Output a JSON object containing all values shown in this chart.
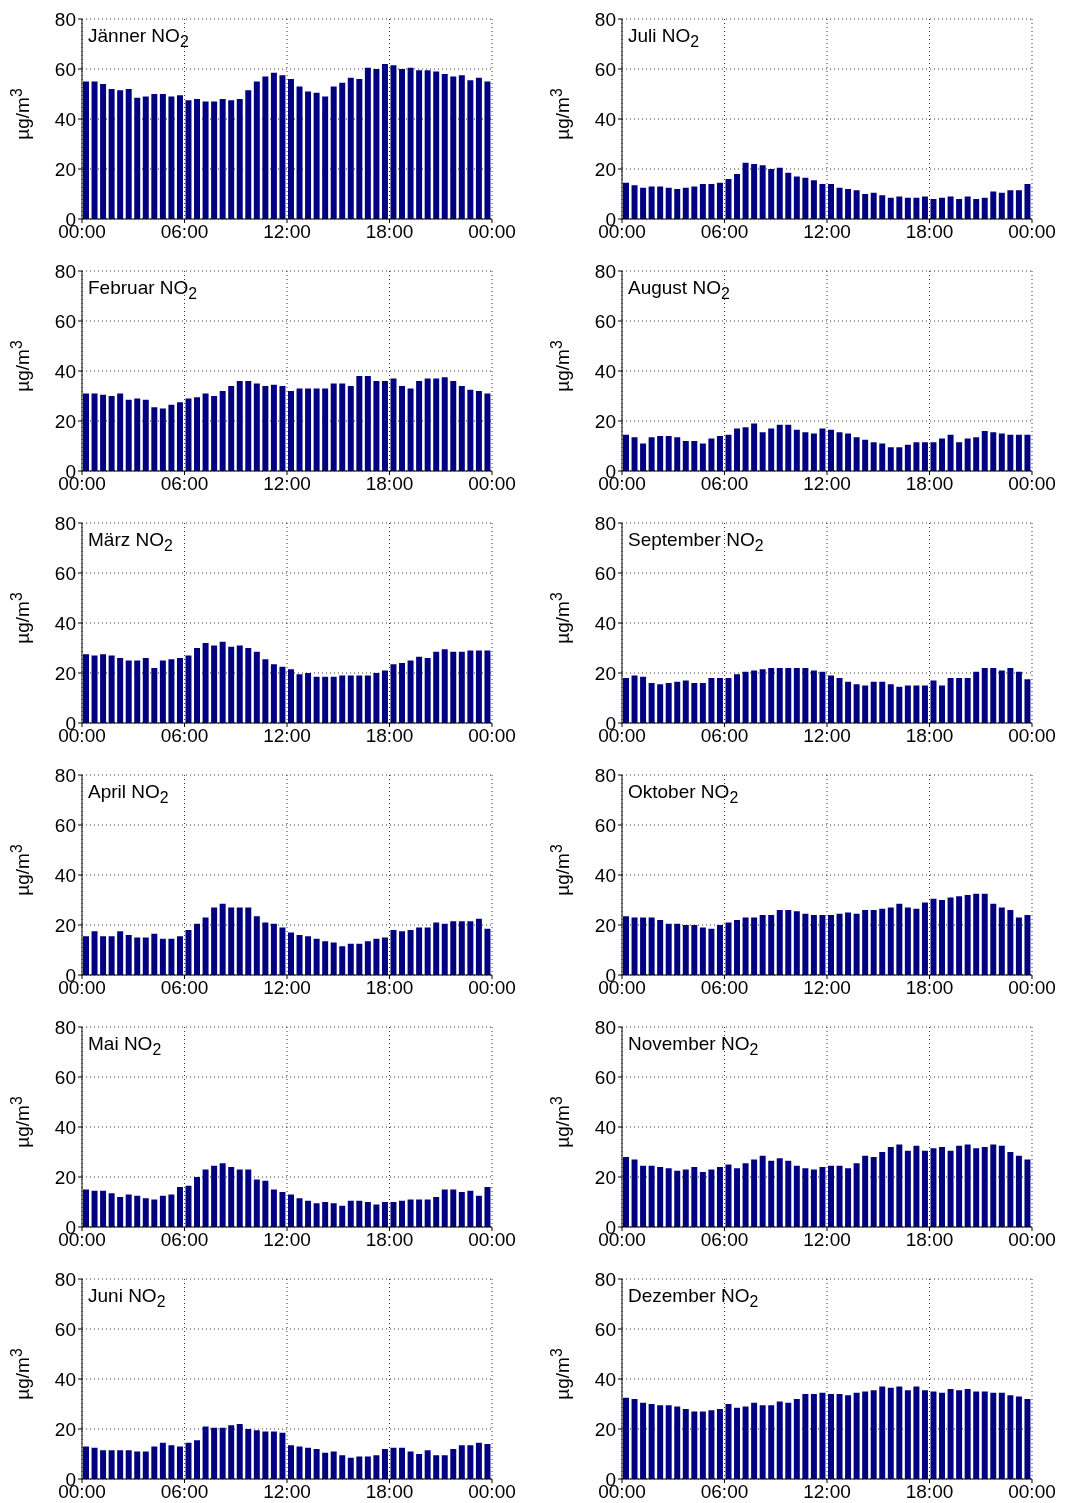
{
  "chart_data": [
    {
      "type": "bar",
      "title": "Jänner NO$_{2}$",
      "ylabel": "µg/m$^{3}$",
      "color": "#000080",
      "xlim": [
        0,
        24
      ],
      "xticks": [
        {
          "value": 0,
          "label": "00:00"
        },
        {
          "value": 6,
          "label": "06:00"
        },
        {
          "value": 12,
          "label": "12:00"
        },
        {
          "value": 18,
          "label": "18:00"
        },
        {
          "value": 24,
          "label": "00:00"
        }
      ],
      "ylim": [
        0,
        80
      ],
      "yticks": [
        0,
        20,
        40,
        60,
        80
      ],
      "grid": true,
      "x": [
        0.25,
        0.75,
        1.25,
        1.75,
        2.25,
        2.75,
        3.25,
        3.75,
        4.25,
        4.75,
        5.25,
        5.75,
        6.25,
        6.75,
        7.25,
        7.75,
        8.25,
        8.75,
        9.25,
        9.75,
        10.25,
        10.75,
        11.25,
        11.75,
        12.25,
        12.75,
        13.25,
        13.75,
        14.25,
        14.75,
        15.25,
        15.75,
        16.25,
        16.75,
        17.25,
        17.75,
        18.25,
        18.75,
        19.25,
        19.75,
        20.25,
        20.75,
        21.25,
        21.75,
        22.25,
        22.75,
        23.25,
        23.75
      ],
      "values": [
        55,
        55,
        54,
        52,
        51.5,
        52,
        48.5,
        49,
        50,
        50,
        49,
        49.5,
        47.5,
        48,
        47,
        47,
        48,
        47.5,
        48,
        51.5,
        55,
        57,
        58.5,
        57.5,
        56,
        53,
        51,
        50.5,
        49,
        53,
        54.5,
        56.5,
        56,
        60.5,
        60,
        62,
        61.5,
        60,
        60.5,
        59.5,
        59.5,
        59,
        58,
        57,
        57.5,
        55.5,
        56.5,
        55
      ]
    },
    {
      "type": "bar",
      "title": "Juli NO$_{2}$",
      "ylabel": "µg/m$^{3}$",
      "color": "#000080",
      "xlim": [
        0,
        24
      ],
      "xticks": [
        {
          "value": 0,
          "label": "00:00"
        },
        {
          "value": 6,
          "label": "06:00"
        },
        {
          "value": 12,
          "label": "12:00"
        },
        {
          "value": 18,
          "label": "18:00"
        },
        {
          "value": 24,
          "label": "00:00"
        }
      ],
      "ylim": [
        0,
        80
      ],
      "yticks": [
        0,
        20,
        40,
        60,
        80
      ],
      "grid": true,
      "x": [
        0.25,
        0.75,
        1.25,
        1.75,
        2.25,
        2.75,
        3.25,
        3.75,
        4.25,
        4.75,
        5.25,
        5.75,
        6.25,
        6.75,
        7.25,
        7.75,
        8.25,
        8.75,
        9.25,
        9.75,
        10.25,
        10.75,
        11.25,
        11.75,
        12.25,
        12.75,
        13.25,
        13.75,
        14.25,
        14.75,
        15.25,
        15.75,
        16.25,
        16.75,
        17.25,
        17.75,
        18.25,
        18.75,
        19.25,
        19.75,
        20.25,
        20.75,
        21.25,
        21.75,
        22.25,
        22.75,
        23.25,
        23.75
      ],
      "values": [
        14.5,
        13.5,
        12.5,
        13,
        13,
        12.5,
        12,
        12.5,
        13,
        14,
        14,
        14.5,
        16,
        18,
        22.5,
        22,
        21.5,
        20,
        20.5,
        18.5,
        17,
        16.5,
        15.5,
        14,
        14,
        12.5,
        12,
        11.5,
        10,
        10.5,
        9.5,
        8.5,
        9,
        8.5,
        8.5,
        9,
        8,
        8.5,
        9,
        8,
        9,
        8,
        8.5,
        11,
        10.5,
        11.5,
        11.5,
        14
      ]
    },
    {
      "type": "bar",
      "title": "Februar NO$_{2}$",
      "ylabel": "µg/m$^{3}$",
      "color": "#000080",
      "xlim": [
        0,
        24
      ],
      "xticks": [
        {
          "value": 0,
          "label": "00:00"
        },
        {
          "value": 6,
          "label": "06:00"
        },
        {
          "value": 12,
          "label": "12:00"
        },
        {
          "value": 18,
          "label": "18:00"
        },
        {
          "value": 24,
          "label": "00:00"
        }
      ],
      "ylim": [
        0,
        80
      ],
      "yticks": [
        0,
        20,
        40,
        60,
        80
      ],
      "grid": true,
      "x": [
        0.25,
        0.75,
        1.25,
        1.75,
        2.25,
        2.75,
        3.25,
        3.75,
        4.25,
        4.75,
        5.25,
        5.75,
        6.25,
        6.75,
        7.25,
        7.75,
        8.25,
        8.75,
        9.25,
        9.75,
        10.25,
        10.75,
        11.25,
        11.75,
        12.25,
        12.75,
        13.25,
        13.75,
        14.25,
        14.75,
        15.25,
        15.75,
        16.25,
        16.75,
        17.25,
        17.75,
        18.25,
        18.75,
        19.25,
        19.75,
        20.25,
        20.75,
        21.25,
        21.75,
        22.25,
        22.75,
        23.25,
        23.75
      ],
      "values": [
        31,
        31,
        30.5,
        30,
        31,
        28.5,
        29,
        28.5,
        25.5,
        25,
        26.5,
        27.5,
        29,
        29.5,
        31,
        30,
        32,
        34,
        36,
        36,
        35,
        34,
        34.5,
        34,
        32,
        33,
        33,
        33,
        33,
        35,
        35,
        34,
        38,
        38,
        36,
        36,
        37,
        34,
        33,
        36,
        37,
        37,
        37.5,
        36,
        34,
        32.5,
        32,
        31
      ]
    },
    {
      "type": "bar",
      "title": "August NO$_{2}$",
      "ylabel": "µg/m$^{3}$",
      "color": "#000080",
      "xlim": [
        0,
        24
      ],
      "xticks": [
        {
          "value": 0,
          "label": "00:00"
        },
        {
          "value": 6,
          "label": "06:00"
        },
        {
          "value": 12,
          "label": "12:00"
        },
        {
          "value": 18,
          "label": "18:00"
        },
        {
          "value": 24,
          "label": "00:00"
        }
      ],
      "ylim": [
        0,
        80
      ],
      "yticks": [
        0,
        20,
        40,
        60,
        80
      ],
      "grid": true,
      "x": [
        0.25,
        0.75,
        1.25,
        1.75,
        2.25,
        2.75,
        3.25,
        3.75,
        4.25,
        4.75,
        5.25,
        5.75,
        6.25,
        6.75,
        7.25,
        7.75,
        8.25,
        8.75,
        9.25,
        9.75,
        10.25,
        10.75,
        11.25,
        11.75,
        12.25,
        12.75,
        13.25,
        13.75,
        14.25,
        14.75,
        15.25,
        15.75,
        16.25,
        16.75,
        17.25,
        17.75,
        18.25,
        18.75,
        19.25,
        19.75,
        20.25,
        20.75,
        21.25,
        21.75,
        22.25,
        22.75,
        23.25,
        23.75
      ],
      "values": [
        14.5,
        13.5,
        11,
        13.5,
        14,
        14,
        13.5,
        12,
        12,
        11,
        13,
        14,
        14.5,
        17,
        17.5,
        19,
        15.5,
        17,
        18.5,
        18.5,
        16.5,
        15.5,
        15,
        17,
        16.5,
        15.5,
        15,
        13.5,
        12.5,
        11.5,
        11,
        9.5,
        9.5,
        10.5,
        11.5,
        11.5,
        11.5,
        13,
        14.5,
        11.5,
        13,
        13.5,
        16,
        15.5,
        15,
        14.5,
        14.5,
        14.5
      ]
    },
    {
      "type": "bar",
      "title": "März NO$_{2}$",
      "ylabel": "µg/m$^{3}$",
      "color": "#000080",
      "xlim": [
        0,
        24
      ],
      "xticks": [
        {
          "value": 0,
          "label": "00:00"
        },
        {
          "value": 6,
          "label": "06:00"
        },
        {
          "value": 12,
          "label": "12:00"
        },
        {
          "value": 18,
          "label": "18:00"
        },
        {
          "value": 24,
          "label": "00:00"
        }
      ],
      "ylim": [
        0,
        80
      ],
      "yticks": [
        0,
        20,
        40,
        60,
        80
      ],
      "grid": true,
      "x": [
        0.25,
        0.75,
        1.25,
        1.75,
        2.25,
        2.75,
        3.25,
        3.75,
        4.25,
        4.75,
        5.25,
        5.75,
        6.25,
        6.75,
        7.25,
        7.75,
        8.25,
        8.75,
        9.25,
        9.75,
        10.25,
        10.75,
        11.25,
        11.75,
        12.25,
        12.75,
        13.25,
        13.75,
        14.25,
        14.75,
        15.25,
        15.75,
        16.25,
        16.75,
        17.25,
        17.75,
        18.25,
        18.75,
        19.25,
        19.75,
        20.25,
        20.75,
        21.25,
        21.75,
        22.25,
        22.75,
        23.25,
        23.75
      ],
      "values": [
        27.5,
        27,
        27.5,
        27,
        26,
        25,
        25,
        26,
        22,
        25,
        25.5,
        26,
        27,
        30,
        32,
        31,
        32.5,
        30.5,
        31,
        30,
        28.5,
        25.5,
        23.5,
        22.5,
        21.5,
        19.5,
        20,
        18.5,
        18.5,
        18.5,
        19,
        19,
        19,
        19,
        20,
        21,
        23.5,
        24,
        25,
        26.5,
        26,
        28.5,
        29.5,
        28.5,
        28.5,
        29,
        29,
        29
      ]
    },
    {
      "type": "bar",
      "title": "September NO$_{2}$",
      "ylabel": "µg/m$^{3}$",
      "color": "#000080",
      "xlim": [
        0,
        24
      ],
      "xticks": [
        {
          "value": 0,
          "label": "00:00"
        },
        {
          "value": 6,
          "label": "06:00"
        },
        {
          "value": 12,
          "label": "12:00"
        },
        {
          "value": 18,
          "label": "18:00"
        },
        {
          "value": 24,
          "label": "00:00"
        }
      ],
      "ylim": [
        0,
        80
      ],
      "yticks": [
        0,
        20,
        40,
        60,
        80
      ],
      "grid": true,
      "x": [
        0.25,
        0.75,
        1.25,
        1.75,
        2.25,
        2.75,
        3.25,
        3.75,
        4.25,
        4.75,
        5.25,
        5.75,
        6.25,
        6.75,
        7.25,
        7.75,
        8.25,
        8.75,
        9.25,
        9.75,
        10.25,
        10.75,
        11.25,
        11.75,
        12.25,
        12.75,
        13.25,
        13.75,
        14.25,
        14.75,
        15.25,
        15.75,
        16.25,
        16.75,
        17.25,
        17.75,
        18.25,
        18.75,
        19.25,
        19.75,
        20.25,
        20.75,
        21.25,
        21.75,
        22.25,
        22.75,
        23.25,
        23.75
      ],
      "values": [
        18,
        19,
        18.5,
        16,
        15.5,
        16,
        16.5,
        17,
        16,
        16,
        18,
        18,
        18,
        19.5,
        20.5,
        21,
        21.5,
        22,
        22,
        22,
        22,
        22,
        21,
        20.5,
        19,
        18,
        16.5,
        15.5,
        15,
        16.5,
        16.5,
        15.5,
        14.5,
        15,
        15,
        15,
        17,
        15,
        18,
        18,
        18,
        20.5,
        22,
        22,
        21,
        22,
        20.5,
        17.5
      ]
    },
    {
      "type": "bar",
      "title": "April NO$_{2}$",
      "ylabel": "µg/m$^{3}$",
      "color": "#000080",
      "xlim": [
        0,
        24
      ],
      "xticks": [
        {
          "value": 0,
          "label": "00:00"
        },
        {
          "value": 6,
          "label": "06:00"
        },
        {
          "value": 12,
          "label": "12:00"
        },
        {
          "value": 18,
          "label": "18:00"
        },
        {
          "value": 24,
          "label": "00:00"
        }
      ],
      "ylim": [
        0,
        80
      ],
      "yticks": [
        0,
        20,
        40,
        60,
        80
      ],
      "grid": true,
      "x": [
        0.25,
        0.75,
        1.25,
        1.75,
        2.25,
        2.75,
        3.25,
        3.75,
        4.25,
        4.75,
        5.25,
        5.75,
        6.25,
        6.75,
        7.25,
        7.75,
        8.25,
        8.75,
        9.25,
        9.75,
        10.25,
        10.75,
        11.25,
        11.75,
        12.25,
        12.75,
        13.25,
        13.75,
        14.25,
        14.75,
        15.25,
        15.75,
        16.25,
        16.75,
        17.25,
        17.75,
        18.25,
        18.75,
        19.25,
        19.75,
        20.25,
        20.75,
        21.25,
        21.75,
        22.25,
        22.75,
        23.25,
        23.75
      ],
      "values": [
        15.5,
        17.5,
        15.5,
        15.5,
        17.5,
        16,
        15,
        15,
        16.5,
        14.5,
        14.5,
        15.5,
        18,
        20.5,
        23,
        27,
        28.5,
        27,
        27,
        27,
        23.5,
        21,
        20.5,
        19,
        17,
        16,
        15.5,
        14.5,
        13.5,
        13,
        11.5,
        12.5,
        12.5,
        13.5,
        14.5,
        15,
        18,
        17.5,
        18,
        19,
        19,
        21,
        20.5,
        21.5,
        21.5,
        21.5,
        22.5,
        18.5
      ]
    },
    {
      "type": "bar",
      "title": "Oktober NO$_{2}$",
      "ylabel": "µg/m$^{3}$",
      "color": "#000080",
      "xlim": [
        0,
        24
      ],
      "xticks": [
        {
          "value": 0,
          "label": "00:00"
        },
        {
          "value": 6,
          "label": "06:00"
        },
        {
          "value": 12,
          "label": "12:00"
        },
        {
          "value": 18,
          "label": "18:00"
        },
        {
          "value": 24,
          "label": "00:00"
        }
      ],
      "ylim": [
        0,
        80
      ],
      "yticks": [
        0,
        20,
        40,
        60,
        80
      ],
      "grid": true,
      "x": [
        0.25,
        0.75,
        1.25,
        1.75,
        2.25,
        2.75,
        3.25,
        3.75,
        4.25,
        4.75,
        5.25,
        5.75,
        6.25,
        6.75,
        7.25,
        7.75,
        8.25,
        8.75,
        9.25,
        9.75,
        10.25,
        10.75,
        11.25,
        11.75,
        12.25,
        12.75,
        13.25,
        13.75,
        14.25,
        14.75,
        15.25,
        15.75,
        16.25,
        16.75,
        17.25,
        17.75,
        18.25,
        18.75,
        19.25,
        19.75,
        20.25,
        20.75,
        21.25,
        21.75,
        22.25,
        22.75,
        23.25,
        23.75
      ],
      "values": [
        23.5,
        23,
        23,
        23,
        22,
        20.5,
        20.5,
        20,
        20,
        19,
        18.5,
        20,
        21,
        22,
        23,
        23,
        24,
        24,
        26,
        26,
        25.5,
        24.5,
        24,
        24,
        24,
        24.5,
        25,
        24.5,
        26,
        26,
        26.5,
        27,
        28.5,
        27,
        26.5,
        29,
        30.5,
        30,
        31,
        31.5,
        32,
        32.5,
        32.5,
        28.5,
        27,
        26,
        23,
        24
      ]
    },
    {
      "type": "bar",
      "title": "Mai NO$_{2}$",
      "ylabel": "µg/m$^{3}$",
      "color": "#000080",
      "xlim": [
        0,
        24
      ],
      "xticks": [
        {
          "value": 0,
          "label": "00:00"
        },
        {
          "value": 6,
          "label": "06:00"
        },
        {
          "value": 12,
          "label": "12:00"
        },
        {
          "value": 18,
          "label": "18:00"
        },
        {
          "value": 24,
          "label": "00:00"
        }
      ],
      "ylim": [
        0,
        80
      ],
      "yticks": [
        0,
        20,
        40,
        60,
        80
      ],
      "grid": true,
      "x": [
        0.25,
        0.75,
        1.25,
        1.75,
        2.25,
        2.75,
        3.25,
        3.75,
        4.25,
        4.75,
        5.25,
        5.75,
        6.25,
        6.75,
        7.25,
        7.75,
        8.25,
        8.75,
        9.25,
        9.75,
        10.25,
        10.75,
        11.25,
        11.75,
        12.25,
        12.75,
        13.25,
        13.75,
        14.25,
        14.75,
        15.25,
        15.75,
        16.25,
        16.75,
        17.25,
        17.75,
        18.25,
        18.75,
        19.25,
        19.75,
        20.25,
        20.75,
        21.25,
        21.75,
        22.25,
        22.75,
        23.25,
        23.75
      ],
      "values": [
        15,
        14.5,
        14.5,
        13.5,
        12,
        13,
        12.5,
        11.5,
        11,
        12.5,
        13,
        16,
        16.5,
        20,
        23,
        24.5,
        25.5,
        24,
        23,
        23,
        19,
        18.5,
        15,
        14,
        13,
        11.5,
        10.5,
        9.5,
        10,
        9.5,
        8.5,
        10.5,
        10.5,
        10,
        9,
        10,
        10,
        10.5,
        11,
        11,
        11,
        12,
        15,
        15,
        14,
        14.5,
        12.5,
        16
      ]
    },
    {
      "type": "bar",
      "title": "November NO$_{2}$",
      "ylabel": "µg/m$^{3}$",
      "color": "#000080",
      "xlim": [
        0,
        24
      ],
      "xticks": [
        {
          "value": 0,
          "label": "00:00"
        },
        {
          "value": 6,
          "label": "06:00"
        },
        {
          "value": 12,
          "label": "12:00"
        },
        {
          "value": 18,
          "label": "18:00"
        },
        {
          "value": 24,
          "label": "00:00"
        }
      ],
      "ylim": [
        0,
        80
      ],
      "yticks": [
        0,
        20,
        40,
        60,
        80
      ],
      "grid": true,
      "x": [
        0.25,
        0.75,
        1.25,
        1.75,
        2.25,
        2.75,
        3.25,
        3.75,
        4.25,
        4.75,
        5.25,
        5.75,
        6.25,
        6.75,
        7.25,
        7.75,
        8.25,
        8.75,
        9.25,
        9.75,
        10.25,
        10.75,
        11.25,
        11.75,
        12.25,
        12.75,
        13.25,
        13.75,
        14.25,
        14.75,
        15.25,
        15.75,
        16.25,
        16.75,
        17.25,
        17.75,
        18.25,
        18.75,
        19.25,
        19.75,
        20.25,
        20.75,
        21.25,
        21.75,
        22.25,
        22.75,
        23.25,
        23.75
      ],
      "values": [
        28,
        27,
        24.5,
        24.5,
        24,
        23.5,
        22.5,
        23,
        24,
        22,
        23,
        24,
        25,
        23.5,
        25.5,
        27,
        28.5,
        26.5,
        27.5,
        26.5,
        24.5,
        23.5,
        23,
        24,
        24.5,
        24.5,
        23.5,
        25.5,
        28.5,
        28,
        30,
        32,
        33,
        30.5,
        32.5,
        30.5,
        31.5,
        32,
        30.5,
        32.5,
        33,
        31.5,
        32,
        33,
        32.5,
        30,
        28.5,
        27
      ]
    },
    {
      "type": "bar",
      "title": "Juni NO$_{2}$",
      "ylabel": "µg/m$^{3}$",
      "color": "#000080",
      "xlim": [
        0,
        24
      ],
      "xticks": [
        {
          "value": 0,
          "label": "00:00"
        },
        {
          "value": 6,
          "label": "06:00"
        },
        {
          "value": 12,
          "label": "12:00"
        },
        {
          "value": 18,
          "label": "18:00"
        },
        {
          "value": 24,
          "label": "00:00"
        }
      ],
      "ylim": [
        0,
        80
      ],
      "yticks": [
        0,
        20,
        40,
        60,
        80
      ],
      "grid": true,
      "x": [
        0.25,
        0.75,
        1.25,
        1.75,
        2.25,
        2.75,
        3.25,
        3.75,
        4.25,
        4.75,
        5.25,
        5.75,
        6.25,
        6.75,
        7.25,
        7.75,
        8.25,
        8.75,
        9.25,
        9.75,
        10.25,
        10.75,
        11.25,
        11.75,
        12.25,
        12.75,
        13.25,
        13.75,
        14.25,
        14.75,
        15.25,
        15.75,
        16.25,
        16.75,
        17.25,
        17.75,
        18.25,
        18.75,
        19.25,
        19.75,
        20.25,
        20.75,
        21.25,
        21.75,
        22.25,
        22.75,
        23.25,
        23.75
      ],
      "values": [
        13,
        12.5,
        11.5,
        11.5,
        11.5,
        11.5,
        11,
        11,
        13,
        14.5,
        13.5,
        13,
        14.5,
        15.5,
        21,
        20.5,
        20.5,
        21.5,
        22,
        20,
        19.5,
        19,
        19,
        18.5,
        13.5,
        13,
        12.5,
        12,
        10.5,
        11,
        9.5,
        8.5,
        9,
        9,
        9.5,
        12,
        12.5,
        12.5,
        11,
        10,
        11.5,
        9.5,
        9.5,
        12,
        13.5,
        13.5,
        14.5,
        14
      ]
    },
    {
      "type": "bar",
      "title": "Dezember NO$_{2}$",
      "ylabel": "µg/m$^{3}$",
      "color": "#000080",
      "xlim": [
        0,
        24
      ],
      "xticks": [
        {
          "value": 0,
          "label": "00:00"
        },
        {
          "value": 6,
          "label": "06:00"
        },
        {
          "value": 12,
          "label": "12:00"
        },
        {
          "value": 18,
          "label": "18:00"
        },
        {
          "value": 24,
          "label": "00:00"
        }
      ],
      "ylim": [
        0,
        80
      ],
      "yticks": [
        0,
        20,
        40,
        60,
        80
      ],
      "grid": true,
      "x": [
        0.25,
        0.75,
        1.25,
        1.75,
        2.25,
        2.75,
        3.25,
        3.75,
        4.25,
        4.75,
        5.25,
        5.75,
        6.25,
        6.75,
        7.25,
        7.75,
        8.25,
        8.75,
        9.25,
        9.75,
        10.25,
        10.75,
        11.25,
        11.75,
        12.25,
        12.75,
        13.25,
        13.75,
        14.25,
        14.75,
        15.25,
        15.75,
        16.25,
        16.75,
        17.25,
        17.75,
        18.25,
        18.75,
        19.25,
        19.75,
        20.25,
        20.75,
        21.25,
        21.75,
        22.25,
        22.75,
        23.25,
        23.75
      ],
      "values": [
        32.5,
        32,
        30.5,
        30,
        29.5,
        29.5,
        29,
        28,
        27,
        27,
        27.5,
        28,
        30,
        28.5,
        29,
        30.5,
        29.5,
        29.5,
        31,
        30.5,
        32,
        34,
        34,
        34.5,
        34,
        34,
        33.5,
        34.5,
        35,
        35.5,
        37,
        36.5,
        37,
        35.5,
        37,
        35.5,
        35,
        34.5,
        36,
        35.5,
        36,
        35,
        35,
        34.5,
        34.5,
        33.5,
        33,
        32
      ]
    }
  ]
}
